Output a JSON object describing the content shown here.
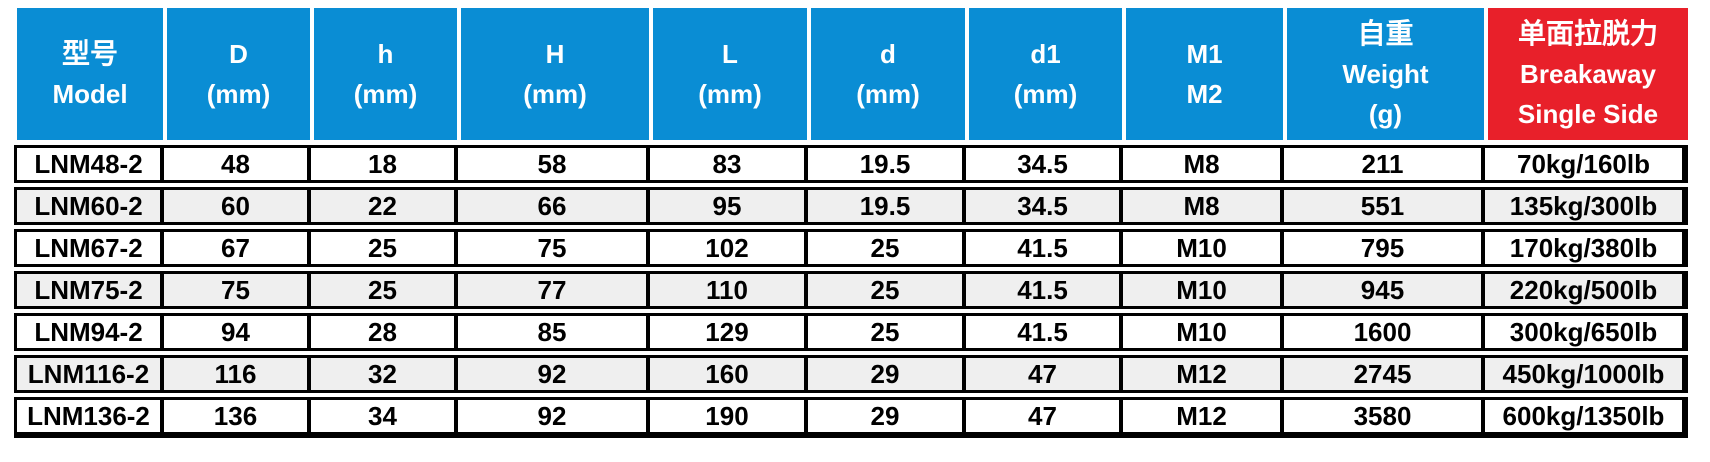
{
  "colors": {
    "header_blue": "#0a8dd4",
    "header_red": "#e8202a",
    "header_text": "#ffffff",
    "row_alt": "#efefef",
    "grid": "#000000",
    "body_text": "#000000"
  },
  "table": {
    "columns": [
      {
        "name": "model",
        "header_lines": [
          "型号",
          "Model"
        ]
      },
      {
        "name": "d-outer",
        "header_lines": [
          "D",
          "(mm)"
        ]
      },
      {
        "name": "h-small",
        "header_lines": [
          "h",
          "(mm)"
        ]
      },
      {
        "name": "h-cap",
        "header_lines": [
          "H",
          "(mm)"
        ]
      },
      {
        "name": "l",
        "header_lines": [
          "L",
          "(mm)"
        ]
      },
      {
        "name": "d-small",
        "header_lines": [
          "d",
          "(mm)"
        ]
      },
      {
        "name": "d1",
        "header_lines": [
          "d1",
          "(mm)"
        ]
      },
      {
        "name": "m1-m2",
        "header_lines": [
          "M1",
          "M2"
        ]
      },
      {
        "name": "weight",
        "header_lines": [
          "自重",
          "Weight",
          "(g)"
        ]
      },
      {
        "name": "breakaway",
        "header_lines": [
          "单面拉脱力",
          "Breakaway",
          "Single Side"
        ],
        "accent": "red"
      }
    ],
    "rows": [
      {
        "cells": [
          "LNM48-2",
          "48",
          "18",
          "58",
          "83",
          "19.5",
          "34.5",
          "M8",
          "211",
          "70kg/160lb"
        ]
      },
      {
        "cells": [
          "LNM60-2",
          "60",
          "22",
          "66",
          "95",
          "19.5",
          "34.5",
          "M8",
          "551",
          "135kg/300lb"
        ]
      },
      {
        "cells": [
          "LNM67-2",
          "67",
          "25",
          "75",
          "102",
          "25",
          "41.5",
          "M10",
          "795",
          "170kg/380lb"
        ]
      },
      {
        "cells": [
          "LNM75-2",
          "75",
          "25",
          "77",
          "110",
          "25",
          "41.5",
          "M10",
          "945",
          "220kg/500lb"
        ]
      },
      {
        "cells": [
          "LNM94-2",
          "94",
          "28",
          "85",
          "129",
          "25",
          "41.5",
          "M10",
          "1600",
          "300kg/650lb"
        ]
      },
      {
        "cells": [
          "LNM116-2",
          "116",
          "32",
          "92",
          "160",
          "29",
          "47",
          "M12",
          "2745",
          "450kg/1000lb"
        ]
      },
      {
        "cells": [
          "LNM136-2",
          "136",
          "34",
          "92",
          "190",
          "29",
          "47",
          "M12",
          "3580",
          "600kg/1350lb"
        ]
      }
    ]
  }
}
